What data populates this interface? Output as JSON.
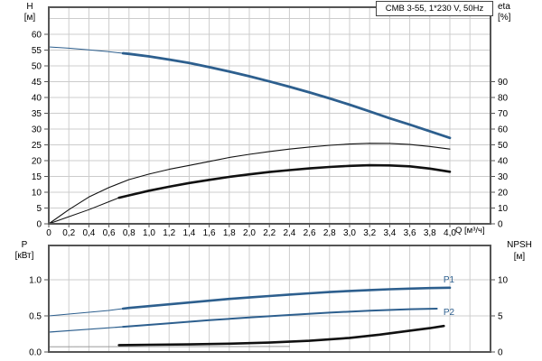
{
  "title_box": {
    "text": "CMB 3-55, 1*230 V, 50Hz"
  },
  "labels": {
    "h": "H",
    "h_unit": "[м]",
    "eta": "eta",
    "eta_unit": "[%]",
    "q": "Q [м³/ч]",
    "p": "P",
    "p_unit": "[кВт]",
    "npsh": "NPSH",
    "npsh_unit": "[м]",
    "p1": "P1",
    "p2": "P2"
  },
  "colors": {
    "blue": "#2d5f8e",
    "black": "#111111",
    "gray": "#9a9a9a",
    "grid": "#cccccc",
    "border": "#555555",
    "text": "#000000"
  },
  "chart_data": [
    {
      "type": "line",
      "title": "CMB 3-55, 1*230 V, 50Hz",
      "xlabel": "Q [м³/ч]",
      "ylabel_left": "H [м]",
      "ylabel_right": "eta [%]",
      "xlim": [
        0,
        4.4
      ],
      "ylim_left": [
        0,
        68.6
      ],
      "ylim_right": [
        0,
        98
      ],
      "grid": "on",
      "x_ticks": {
        "values": [
          0,
          0.2,
          0.4,
          0.6,
          0.8,
          1.0,
          1.2,
          1.4,
          1.6,
          1.8,
          2.0,
          2.2,
          2.4,
          2.6,
          2.8,
          3.0,
          3.2,
          3.4,
          3.6,
          3.8,
          4.0
        ],
        "labels": [
          "0",
          "0,2",
          "0,4",
          "0,6",
          "0,8",
          "1,0",
          "1,2",
          "1,4",
          "1,6",
          "1,8",
          "2,0",
          "2,2",
          "2,4",
          "2,6",
          "2,8",
          "3,0",
          "3,2",
          "3,4",
          "3,6",
          "3,8",
          "4,0"
        ]
      },
      "left_ticks": {
        "values": [
          0,
          5,
          10,
          15,
          20,
          25,
          30,
          35,
          40,
          45,
          50,
          55,
          60
        ],
        "labels": [
          "0",
          "5",
          "10",
          "15",
          "20",
          "25",
          "30",
          "35",
          "40",
          "45",
          "50",
          "55",
          "60"
        ]
      },
      "right_ticks": {
        "values": [
          0,
          10,
          20,
          30,
          40,
          50,
          60,
          70,
          80,
          90
        ],
        "labels": [
          "0",
          "10",
          "20",
          "30",
          "40",
          "50",
          "60",
          "70",
          "80",
          "90"
        ]
      },
      "series": [
        {
          "name": "head-curve",
          "axis": "left",
          "color": "blue",
          "width": 1,
          "emph": {
            "from": 0.74,
            "to": 4.0,
            "width": 2.8
          },
          "points": [
            [
              0,
              56
            ],
            [
              0.2,
              55.6
            ],
            [
              0.4,
              55.1
            ],
            [
              0.6,
              54.5
            ],
            [
              0.8,
              53.8
            ],
            [
              1,
              53
            ],
            [
              1.2,
              52
            ],
            [
              1.4,
              50.9
            ],
            [
              1.6,
              49.6
            ],
            [
              1.8,
              48.2
            ],
            [
              2,
              46.7
            ],
            [
              2.2,
              45.1
            ],
            [
              2.4,
              43.4
            ],
            [
              2.6,
              41.6
            ],
            [
              2.8,
              39.7
            ],
            [
              3,
              37.7
            ],
            [
              3.2,
              35.6
            ],
            [
              3.4,
              33.4
            ],
            [
              3.6,
              31.4
            ],
            [
              3.8,
              29.3
            ],
            [
              4,
              27.2
            ]
          ]
        },
        {
          "name": "eta-pump-curve",
          "axis": "right",
          "color": "black",
          "width": 1.1,
          "emph": null,
          "points": [
            [
              0,
              0
            ],
            [
              0.2,
              9
            ],
            [
              0.4,
              17
            ],
            [
              0.6,
              23
            ],
            [
              0.8,
              28
            ],
            [
              1,
              31.5
            ],
            [
              1.2,
              34.5
            ],
            [
              1.4,
              37
            ],
            [
              1.6,
              39.5
            ],
            [
              1.8,
              42
            ],
            [
              2,
              44
            ],
            [
              2.2,
              45.8
            ],
            [
              2.4,
              47.3
            ],
            [
              2.6,
              48.6
            ],
            [
              2.8,
              49.7
            ],
            [
              3,
              50.5
            ],
            [
              3.2,
              51
            ],
            [
              3.4,
              50.9
            ],
            [
              3.6,
              50.2
            ],
            [
              3.8,
              49
            ],
            [
              4,
              47.3
            ]
          ]
        },
        {
          "name": "eta-total-curve",
          "axis": "right",
          "color": "black",
          "width": 1,
          "emph": {
            "from": 0.7,
            "to": 4.0,
            "width": 2.6
          },
          "points": [
            [
              0,
              0
            ],
            [
              0.2,
              4.5
            ],
            [
              0.4,
              9
            ],
            [
              0.6,
              14
            ],
            [
              0.7,
              16.5
            ],
            [
              0.8,
              18
            ],
            [
              1,
              21
            ],
            [
              1.2,
              23.5
            ],
            [
              1.4,
              25.8
            ],
            [
              1.6,
              27.8
            ],
            [
              1.8,
              29.7
            ],
            [
              2,
              31.3
            ],
            [
              2.2,
              32.8
            ],
            [
              2.4,
              34
            ],
            [
              2.6,
              35.1
            ],
            [
              2.8,
              36
            ],
            [
              3,
              36.7
            ],
            [
              3.2,
              37.1
            ],
            [
              3.4,
              37
            ],
            [
              3.6,
              36.4
            ],
            [
              3.8,
              35
            ],
            [
              4,
              33
            ]
          ]
        }
      ]
    },
    {
      "type": "line",
      "title": "",
      "xlabel": "Q [м³/ч]",
      "ylabel_left": "P [кВт]",
      "ylabel_right": "NPSH [м]",
      "xlim": [
        0,
        4.4
      ],
      "ylim_left": [
        0,
        1.475
      ],
      "ylim_right": [
        0,
        14.75
      ],
      "grid": "on",
      "x_ticks": {
        "values": [],
        "labels": []
      },
      "left_ticks": {
        "values": [
          0,
          0.5,
          1.0
        ],
        "labels": [
          "0.0",
          "0.5",
          "1.0"
        ]
      },
      "right_ticks": {
        "values": [
          0,
          5,
          10
        ],
        "labels": [
          "0",
          "5",
          "10"
        ]
      },
      "series": [
        {
          "name": "p1-curve",
          "axis": "left",
          "color": "blue",
          "width": 1,
          "emph": {
            "from": 0.74,
            "to": 4.0,
            "width": 2.6
          },
          "points": [
            [
              0,
              0.5
            ],
            [
              0.2,
              0.525
            ],
            [
              0.4,
              0.55
            ],
            [
              0.6,
              0.575
            ],
            [
              0.74,
              0.6
            ],
            [
              0.8,
              0.61
            ],
            [
              1,
              0.635
            ],
            [
              1.2,
              0.66
            ],
            [
              1.4,
              0.685
            ],
            [
              1.6,
              0.71
            ],
            [
              1.8,
              0.735
            ],
            [
              2,
              0.755
            ],
            [
              2.2,
              0.775
            ],
            [
              2.4,
              0.795
            ],
            [
              2.6,
              0.813
            ],
            [
              2.8,
              0.83
            ],
            [
              3,
              0.845
            ],
            [
              3.2,
              0.858
            ],
            [
              3.4,
              0.869
            ],
            [
              3.6,
              0.878
            ],
            [
              3.8,
              0.885
            ],
            [
              4,
              0.89
            ]
          ]
        },
        {
          "name": "p2-curve",
          "axis": "left",
          "color": "blue",
          "width": 1.2,
          "emph": {
            "from": 0.74,
            "to": 3.87,
            "width": 2
          },
          "points": [
            [
              0,
              0.275
            ],
            [
              0.4,
              0.315
            ],
            [
              0.74,
              0.349
            ],
            [
              1.2,
              0.397
            ],
            [
              1.6,
              0.44
            ],
            [
              2,
              0.478
            ],
            [
              2.4,
              0.513
            ],
            [
              2.8,
              0.545
            ],
            [
              3.2,
              0.573
            ],
            [
              3.6,
              0.593
            ],
            [
              3.87,
              0.6
            ]
          ]
        },
        {
          "name": "npsh-lead-curve",
          "axis": "right",
          "color": "gray",
          "width": 1,
          "emph": null,
          "points": [
            [
              0,
              0.72
            ],
            [
              2.4,
              0.76
            ]
          ]
        },
        {
          "name": "npsh-curve",
          "axis": "right",
          "color": "black",
          "width": 2.6,
          "emph": null,
          "points": [
            [
              0.7,
              0.95
            ],
            [
              1,
              1
            ],
            [
              1.4,
              1.05
            ],
            [
              1.8,
              1.15
            ],
            [
              2.2,
              1.3
            ],
            [
              2.6,
              1.55
            ],
            [
              3,
              1.95
            ],
            [
              3.3,
              2.4
            ],
            [
              3.6,
              2.95
            ],
            [
              3.8,
              3.3
            ],
            [
              3.94,
              3.6
            ]
          ]
        }
      ]
    }
  ]
}
